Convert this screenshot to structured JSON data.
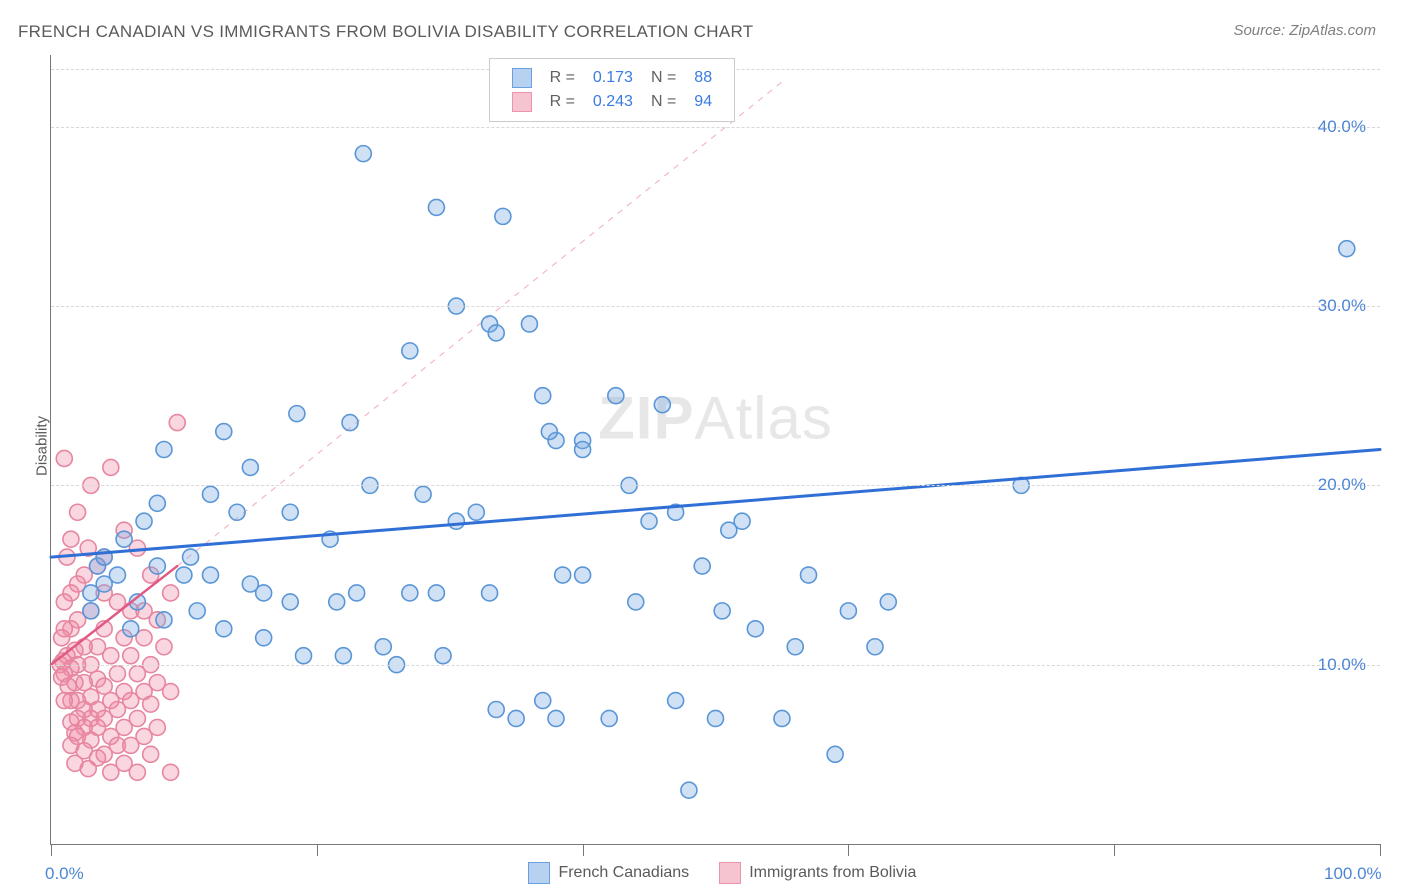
{
  "title": "FRENCH CANADIAN VS IMMIGRANTS FROM BOLIVIA DISABILITY CORRELATION CHART",
  "source": "Source: ZipAtlas.com",
  "ylabel": "Disability",
  "watermark_left": "ZIP",
  "watermark_right": "Atlas",
  "chart": {
    "type": "scatter",
    "xlim": [
      0,
      100
    ],
    "ylim": [
      0,
      44
    ],
    "x_ticks": [
      0,
      20,
      40,
      60,
      80,
      100
    ],
    "x_tick_labels_shown": {
      "0": "0.0%",
      "100": "100.0%"
    },
    "y_gridlines": [
      10,
      20,
      30,
      40,
      43.2
    ],
    "y_tick_labels_shown": {
      "10": "10.0%",
      "20": "20.0%",
      "30": "30.0%",
      "40": "40.0%"
    },
    "background_color": "#ffffff",
    "grid_color": "#d8d8d8",
    "axis_color": "#777777",
    "text_color": "#5a5a5a",
    "marker_radius": 8,
    "marker_stroke_width": 1.6,
    "series": [
      {
        "key": "french_canadians",
        "label": "French Canadians",
        "fill": "rgba(120,170,230,0.35)",
        "stroke": "#5a96d6",
        "swatch_fill": "#b7d2f0",
        "swatch_stroke": "#6aa0de",
        "trend": {
          "type": "solid",
          "color": "#2f6fd6",
          "width": 3,
          "x1": 0,
          "y1": 16.0,
          "x2": 100,
          "y2": 22.0
        },
        "r_value": "0.173",
        "n_value": "88",
        "points": [
          [
            23.5,
            38.5
          ],
          [
            29,
            35.5
          ],
          [
            34,
            35
          ],
          [
            97.5,
            33.2
          ],
          [
            30.5,
            30
          ],
          [
            33,
            29
          ],
          [
            27,
            27.5
          ],
          [
            33.5,
            28.5
          ],
          [
            36,
            29
          ],
          [
            42.5,
            25
          ],
          [
            18.5,
            24
          ],
          [
            22.5,
            23.5
          ],
          [
            37,
            25
          ],
          [
            46,
            24.5
          ],
          [
            38,
            22.5
          ],
          [
            37.5,
            23
          ],
          [
            40,
            22.5
          ],
          [
            40,
            22
          ],
          [
            13,
            23
          ],
          [
            15,
            21
          ],
          [
            8.5,
            22
          ],
          [
            73,
            20
          ],
          [
            24,
            20
          ],
          [
            28,
            19.5
          ],
          [
            32,
            18.5
          ],
          [
            43.5,
            20
          ],
          [
            47,
            18.5
          ],
          [
            30.5,
            18
          ],
          [
            12,
            19.5
          ],
          [
            8,
            19
          ],
          [
            14,
            18.5
          ],
          [
            18,
            18.5
          ],
          [
            21,
            17
          ],
          [
            45,
            18
          ],
          [
            52,
            18
          ],
          [
            51,
            17.5
          ],
          [
            63,
            13.5
          ],
          [
            56,
            11
          ],
          [
            60,
            13
          ],
          [
            57,
            15
          ],
          [
            50.5,
            13
          ],
          [
            49,
            15.5
          ],
          [
            44,
            13.5
          ],
          [
            38.5,
            15
          ],
          [
            40,
            15
          ],
          [
            33,
            14
          ],
          [
            29,
            14
          ],
          [
            27,
            14
          ],
          [
            23,
            14
          ],
          [
            21.5,
            13.5
          ],
          [
            18,
            13.5
          ],
          [
            16,
            14
          ],
          [
            15,
            14.5
          ],
          [
            12,
            15
          ],
          [
            10.5,
            16
          ],
          [
            10,
            15
          ],
          [
            8,
            15.5
          ],
          [
            6.5,
            13.5
          ],
          [
            5,
            15
          ],
          [
            4,
            14.5
          ],
          [
            3.5,
            15.5
          ],
          [
            3,
            14
          ],
          [
            3,
            13
          ],
          [
            6,
            12
          ],
          [
            8.5,
            12.5
          ],
          [
            11,
            13
          ],
          [
            13,
            12
          ],
          [
            16,
            11.5
          ],
          [
            19,
            10.5
          ],
          [
            22,
            10.5
          ],
          [
            25,
            11
          ],
          [
            26,
            10
          ],
          [
            29.5,
            10.5
          ],
          [
            33.5,
            7.5
          ],
          [
            37,
            8
          ],
          [
            38,
            7
          ],
          [
            42,
            7
          ],
          [
            47,
            8
          ],
          [
            50,
            7
          ],
          [
            35,
            7
          ],
          [
            55,
            7
          ],
          [
            59,
            5
          ],
          [
            53,
            12
          ],
          [
            48,
            3
          ],
          [
            62,
            11
          ],
          [
            5.5,
            17
          ],
          [
            7,
            18
          ],
          [
            4,
            16
          ]
        ]
      },
      {
        "key": "immigrants_bolivia",
        "label": "Immigrants from Bolivia",
        "fill": "rgba(240,140,165,0.35)",
        "stroke": "#e6869f",
        "swatch_fill": "#f6c3d1",
        "swatch_stroke": "#eb94ac",
        "trend": {
          "type": "solid",
          "color": "#e05a83",
          "width": 2.5,
          "x1": 0,
          "y1": 10.0,
          "x2": 9.5,
          "y2": 15.5
        },
        "extrapolation": {
          "type": "dashed",
          "color": "rgba(235,120,150,0.55)",
          "width": 1.2,
          "x1": 9.5,
          "y1": 15.5,
          "x2": 55,
          "y2": 42.5
        },
        "r_value": "0.243",
        "n_value": "94",
        "points": [
          [
            9.5,
            23.5
          ],
          [
            1,
            21.5
          ],
          [
            4.5,
            21
          ],
          [
            3,
            20
          ],
          [
            2,
            18.5
          ],
          [
            5.5,
            17.5
          ],
          [
            6.5,
            16.5
          ],
          [
            4,
            16
          ],
          [
            7.5,
            15
          ],
          [
            3.5,
            15.5
          ],
          [
            2.5,
            15
          ],
          [
            2,
            14.5
          ],
          [
            1.5,
            14
          ],
          [
            1,
            13.5
          ],
          [
            4,
            14
          ],
          [
            5,
            13.5
          ],
          [
            6,
            13
          ],
          [
            7,
            13
          ],
          [
            8,
            12.5
          ],
          [
            3,
            13
          ],
          [
            2,
            12.5
          ],
          [
            1.5,
            12
          ],
          [
            1,
            12
          ],
          [
            0.8,
            11.5
          ],
          [
            4,
            12
          ],
          [
            5.5,
            11.5
          ],
          [
            7,
            11.5
          ],
          [
            8.5,
            11
          ],
          [
            3.5,
            11
          ],
          [
            2.5,
            11
          ],
          [
            1.8,
            10.8
          ],
          [
            1.2,
            10.5
          ],
          [
            0.9,
            10.2
          ],
          [
            0.7,
            10
          ],
          [
            4.5,
            10.5
          ],
          [
            6,
            10.5
          ],
          [
            7.5,
            10
          ],
          [
            3,
            10
          ],
          [
            2,
            10
          ],
          [
            1.5,
            9.8
          ],
          [
            1,
            9.5
          ],
          [
            0.8,
            9.3
          ],
          [
            5,
            9.5
          ],
          [
            6.5,
            9.5
          ],
          [
            8,
            9
          ],
          [
            3.5,
            9.2
          ],
          [
            2.5,
            9
          ],
          [
            1.8,
            9
          ],
          [
            1.3,
            8.8
          ],
          [
            4,
            8.8
          ],
          [
            5.5,
            8.5
          ],
          [
            7,
            8.5
          ],
          [
            9,
            8.5
          ],
          [
            3,
            8.2
          ],
          [
            2,
            8
          ],
          [
            1.5,
            8
          ],
          [
            1,
            8
          ],
          [
            4.5,
            8
          ],
          [
            6,
            8
          ],
          [
            7.5,
            7.8
          ],
          [
            3.5,
            7.5
          ],
          [
            2.5,
            7.5
          ],
          [
            5,
            7.5
          ],
          [
            9,
            4
          ],
          [
            3,
            7
          ],
          [
            2,
            7
          ],
          [
            4,
            7
          ],
          [
            6.5,
            7
          ],
          [
            1.5,
            6.8
          ],
          [
            3.5,
            6.5
          ],
          [
            5.5,
            6.5
          ],
          [
            8,
            6.5
          ],
          [
            2.5,
            6.5
          ],
          [
            1.8,
            6.2
          ],
          [
            4.5,
            6
          ],
          [
            7,
            6
          ],
          [
            2,
            6
          ],
          [
            3,
            5.8
          ],
          [
            5,
            5.5
          ],
          [
            1.5,
            5.5
          ],
          [
            6,
            5.5
          ],
          [
            2.5,
            5.2
          ],
          [
            4,
            5
          ],
          [
            7.5,
            5
          ],
          [
            3.5,
            4.8
          ],
          [
            1.8,
            4.5
          ],
          [
            5.5,
            4.5
          ],
          [
            2.8,
            4.2
          ],
          [
            4.5,
            4
          ],
          [
            6.5,
            4
          ],
          [
            1.2,
            16
          ],
          [
            2.8,
            16.5
          ],
          [
            1.5,
            17
          ],
          [
            9,
            14
          ]
        ]
      }
    ]
  },
  "legend_top": {
    "pos_left_pct": 33,
    "r_color": "#3a7be0",
    "n_color": "#3a7be0",
    "label_color": "#606060",
    "rows": [
      {
        "series_key": "french_canadians"
      },
      {
        "series_key": "immigrants_bolivia"
      }
    ]
  },
  "legend_bottom": {
    "pos_left_pct": 36
  }
}
